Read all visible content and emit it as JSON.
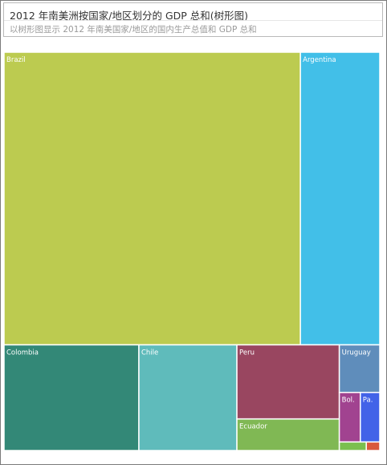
{
  "header": {
    "title": "2012 年南美洲按国家/地区划分的 GDP 总和(树形图)",
    "subtitle": "以树形图显示 2012 年南美国家/地区的国内生产总值和 GDP 总和"
  },
  "chart_data": {
    "type": "treemap",
    "unit": "",
    "items": [
      {
        "label": "Brazil",
        "value": 2252,
        "color": "#bccb50"
      },
      {
        "label": "Argentina",
        "value": 603,
        "color": "#42bfe8"
      },
      {
        "label": "Colombia",
        "value": 370,
        "color": "#338877"
      },
      {
        "label": "Chile",
        "value": 269,
        "color": "#5fbbbb"
      },
      {
        "label": "Peru",
        "value": 197,
        "color": "#994660"
      },
      {
        "label": "Ecuador",
        "value": 84,
        "color": "#80b854"
      },
      {
        "label": "Uruguay",
        "value": 50,
        "color": "#5f8dbb"
      },
      {
        "label": "Bolivia",
        "value": 27,
        "color": "#a14390"
      },
      {
        "label": "Paraguay",
        "value": 25,
        "color": "#4263e8"
      },
      {
        "label": "",
        "value": 6,
        "color": "#7bbf4f"
      },
      {
        "label": "",
        "value": 3,
        "color": "#d9593d"
      }
    ]
  }
}
